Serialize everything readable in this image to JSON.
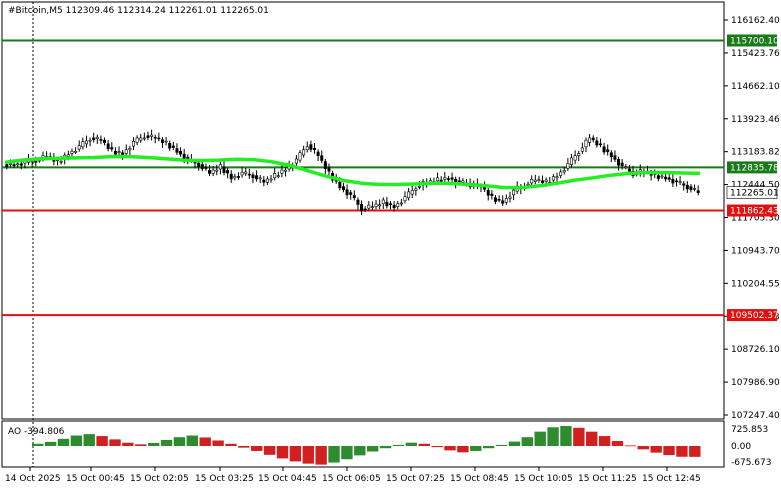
{
  "header": {
    "title": "#Bitcoin,M5  112309.46 112314.24 112261.01 112265.01"
  },
  "oscillator": {
    "label": "AO -394.806",
    "ticks": [
      "725.853",
      "0.00",
      "-675.673"
    ]
  },
  "colors": {
    "candle": "#000000",
    "ma_line": "#22ee22",
    "resistance": "#1a7a1a",
    "support": "#e01010",
    "ao_up": "#2e8b2e",
    "ao_down": "#d02020",
    "bg": "#ffffff"
  },
  "chart_data": {
    "type": "candlestick",
    "symbol": "#Bitcoin",
    "timeframe": "M5",
    "ohlc_last": {
      "open": 112309.46,
      "high": 112314.24,
      "low": 112261.01,
      "close": 112265.01
    },
    "y_ticks": [
      "116162.40",
      "115423.76",
      "114662.10",
      "113923.46",
      "113183.82",
      "112444.50",
      "111705.30",
      "110943.70",
      "110204.55",
      "109465.43",
      "108726.10",
      "107986.90",
      "107247.40"
    ],
    "y_range": [
      107247.4,
      116162.4
    ],
    "x_ticks": [
      "14 Oct 2025",
      "15 Oct 00:45",
      "15 Oct 02:05",
      "15 Oct 03:25",
      "15 Oct 04:45",
      "15 Oct 06:05",
      "15 Oct 07:25",
      "15 Oct 08:45",
      "15 Oct 10:05",
      "15 Oct 11:25",
      "15 Oct 12:45"
    ],
    "levels": [
      {
        "price": 115700.1,
        "label": "115700.10",
        "role": "resistance"
      },
      {
        "price": 112835.78,
        "label": "112835.78",
        "role": "resistance"
      },
      {
        "price": 111862.43,
        "label": "111862.43",
        "role": "support"
      },
      {
        "price": 109502.37,
        "label": "109502.37",
        "role": "support"
      }
    ],
    "current_price_label": "112265.01",
    "close_series": [
      112900,
      112950,
      113000,
      113080,
      112960,
      113150,
      113300,
      113500,
      113450,
      113200,
      113150,
      113400,
      113550,
      113500,
      113380,
      113200,
      113000,
      112900,
      112700,
      112850,
      112600,
      112700,
      112650,
      112500,
      112650,
      112800,
      113000,
      113350,
      113100,
      112700,
      112400,
      112200,
      111900,
      111950,
      112050,
      111950,
      112150,
      112400,
      112500,
      112550,
      112600,
      112500,
      112450,
      112400,
      112150,
      112050,
      112300,
      112450,
      112550,
      112500,
      112650,
      112900,
      113200,
      113500,
      113300,
      113100,
      112850,
      112700,
      112750,
      112650,
      112600,
      112500,
      112400,
      112265
    ],
    "ma_series": [
      112950,
      113000,
      113030,
      113040,
      113050,
      113060,
      113080,
      113080,
      113060,
      113030,
      113000,
      112990,
      113000,
      113020,
      113010,
      112960,
      112880,
      112760,
      112640,
      112540,
      112480,
      112450,
      112450,
      112460,
      112480,
      112480,
      112450,
      112420,
      112380,
      112380,
      112420,
      112480,
      112550,
      112600,
      112660,
      112700,
      112720,
      112720,
      112710,
      112700
    ],
    "ao_values": [
      80,
      150,
      260,
      380,
      430,
      360,
      240,
      120,
      60,
      110,
      220,
      320,
      380,
      310,
      200,
      80,
      -60,
      -180,
      -320,
      -450,
      -560,
      -640,
      -675,
      -600,
      -480,
      -340,
      -200,
      -80,
      40,
      120,
      80,
      -40,
      -160,
      -230,
      -180,
      -80,
      40,
      160,
      320,
      520,
      680,
      725,
      660,
      520,
      360,
      180,
      20,
      -120,
      -240,
      -330,
      -390,
      -394
    ]
  }
}
